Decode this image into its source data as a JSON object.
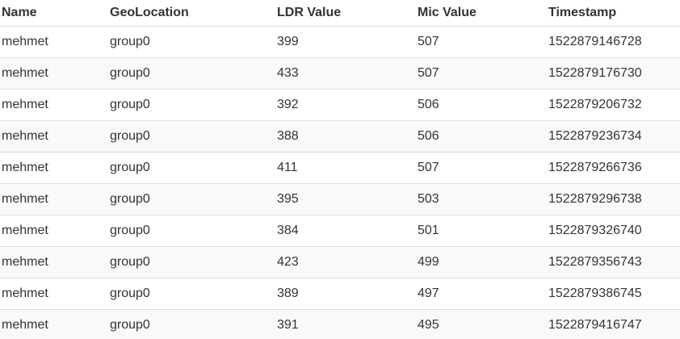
{
  "table": {
    "columns": [
      "Name",
      "GeoLocation",
      "LDR Value",
      "Mic Value",
      "Timestamp"
    ],
    "rows": [
      [
        "mehmet",
        "group0",
        "399",
        "507",
        "1522879146728"
      ],
      [
        "mehmet",
        "group0",
        "433",
        "507",
        "1522879176730"
      ],
      [
        "mehmet",
        "group0",
        "392",
        "506",
        "1522879206732"
      ],
      [
        "mehmet",
        "group0",
        "388",
        "506",
        "1522879236734"
      ],
      [
        "mehmet",
        "group0",
        "411",
        "507",
        "1522879266736"
      ],
      [
        "mehmet",
        "group0",
        "395",
        "503",
        "1522879296738"
      ],
      [
        "mehmet",
        "group0",
        "384",
        "501",
        "1522879326740"
      ],
      [
        "mehmet",
        "group0",
        "423",
        "499",
        "1522879356743"
      ],
      [
        "mehmet",
        "group0",
        "389",
        "497",
        "1522879386745"
      ],
      [
        "mehmet",
        "group0",
        "391",
        "495",
        "1522879416747"
      ]
    ]
  },
  "colors": {
    "text": "#333333",
    "border": "#dddddd",
    "stripe": "#f9f9f9"
  }
}
